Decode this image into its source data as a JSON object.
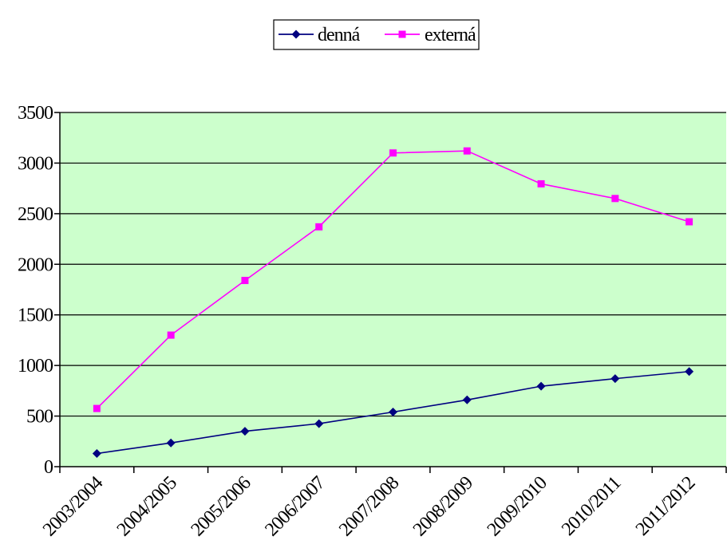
{
  "chart_data": {
    "type": "line",
    "categories": [
      "2003/2004",
      "2004/2005",
      "2005/2006",
      "2006/2007",
      "2007/2008",
      "2008/2009",
      "2009/2010",
      "2010/2011",
      "2011/2012"
    ],
    "series": [
      {
        "name": "denná",
        "color": "#000080",
        "marker": "diamond",
        "values": [
          130,
          235,
          350,
          425,
          540,
          660,
          795,
          870,
          940
        ]
      },
      {
        "name": "externá",
        "color": "#ff00ff",
        "marker": "square",
        "values": [
          575,
          1300,
          1840,
          2370,
          3100,
          3120,
          2795,
          2650,
          2420
        ]
      }
    ],
    "ylim": [
      0,
      3500
    ],
    "yticks": [
      0,
      500,
      1000,
      1500,
      2000,
      2500,
      3000,
      3500
    ],
    "grid": "horizontal",
    "plot_background": "#ccffcc",
    "legend_position": "top-center",
    "title": "",
    "xlabel": "",
    "ylabel": ""
  }
}
